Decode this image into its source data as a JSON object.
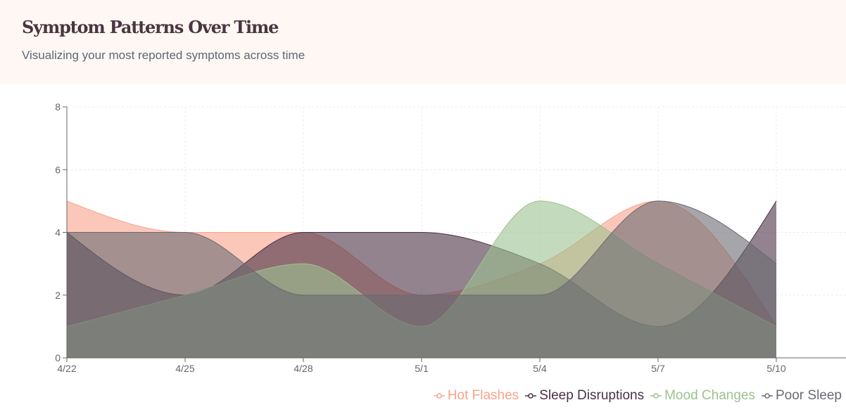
{
  "header": {
    "title": "Symptom Patterns Over Time",
    "subtitle": "Visualizing your most reported symptoms across time"
  },
  "colors": {
    "hot_flashes": "#f9a28a",
    "sleep_disruptions": "#4a3045",
    "mood_changes": "#9dc18f",
    "poor_sleep": "#6a6a72",
    "axis": "#666666",
    "grid": "#e8ecef",
    "header_bg": "#fff7f3"
  },
  "legend": [
    {
      "label": "Hot Flashes",
      "color": "#f9a28a"
    },
    {
      "label": "Sleep Disruptions",
      "color": "#4a3045"
    },
    {
      "label": "Mood Changes",
      "color": "#9dc18f"
    },
    {
      "label": "Poor Sleep",
      "color": "#6a6a72"
    }
  ],
  "chart_data": {
    "type": "area",
    "title": "",
    "xlabel": "",
    "ylabel": "",
    "x": [
      "4/22",
      "4/25",
      "4/28",
      "5/1",
      "5/4",
      "5/7",
      "5/10"
    ],
    "x_ticks": [
      "4/22",
      "4/25",
      "4/28",
      "5/1",
      "5/4",
      "5/7",
      "5/10"
    ],
    "y_ticks": [
      0,
      2,
      4,
      6,
      8
    ],
    "ylim": [
      0,
      8
    ],
    "grid": true,
    "legend_position": "bottom-right",
    "series": [
      {
        "name": "Hot Flashes",
        "values": [
          5,
          4,
          4,
          2,
          3,
          5,
          1
        ]
      },
      {
        "name": "Sleep Disruptions",
        "values": [
          4,
          2,
          4,
          4,
          3,
          1,
          5
        ]
      },
      {
        "name": "Mood Changes",
        "values": [
          1,
          2,
          3,
          1,
          5,
          3,
          1
        ]
      },
      {
        "name": "Poor Sleep",
        "values": [
          4,
          4,
          2,
          2,
          2,
          5,
          3
        ]
      }
    ]
  }
}
